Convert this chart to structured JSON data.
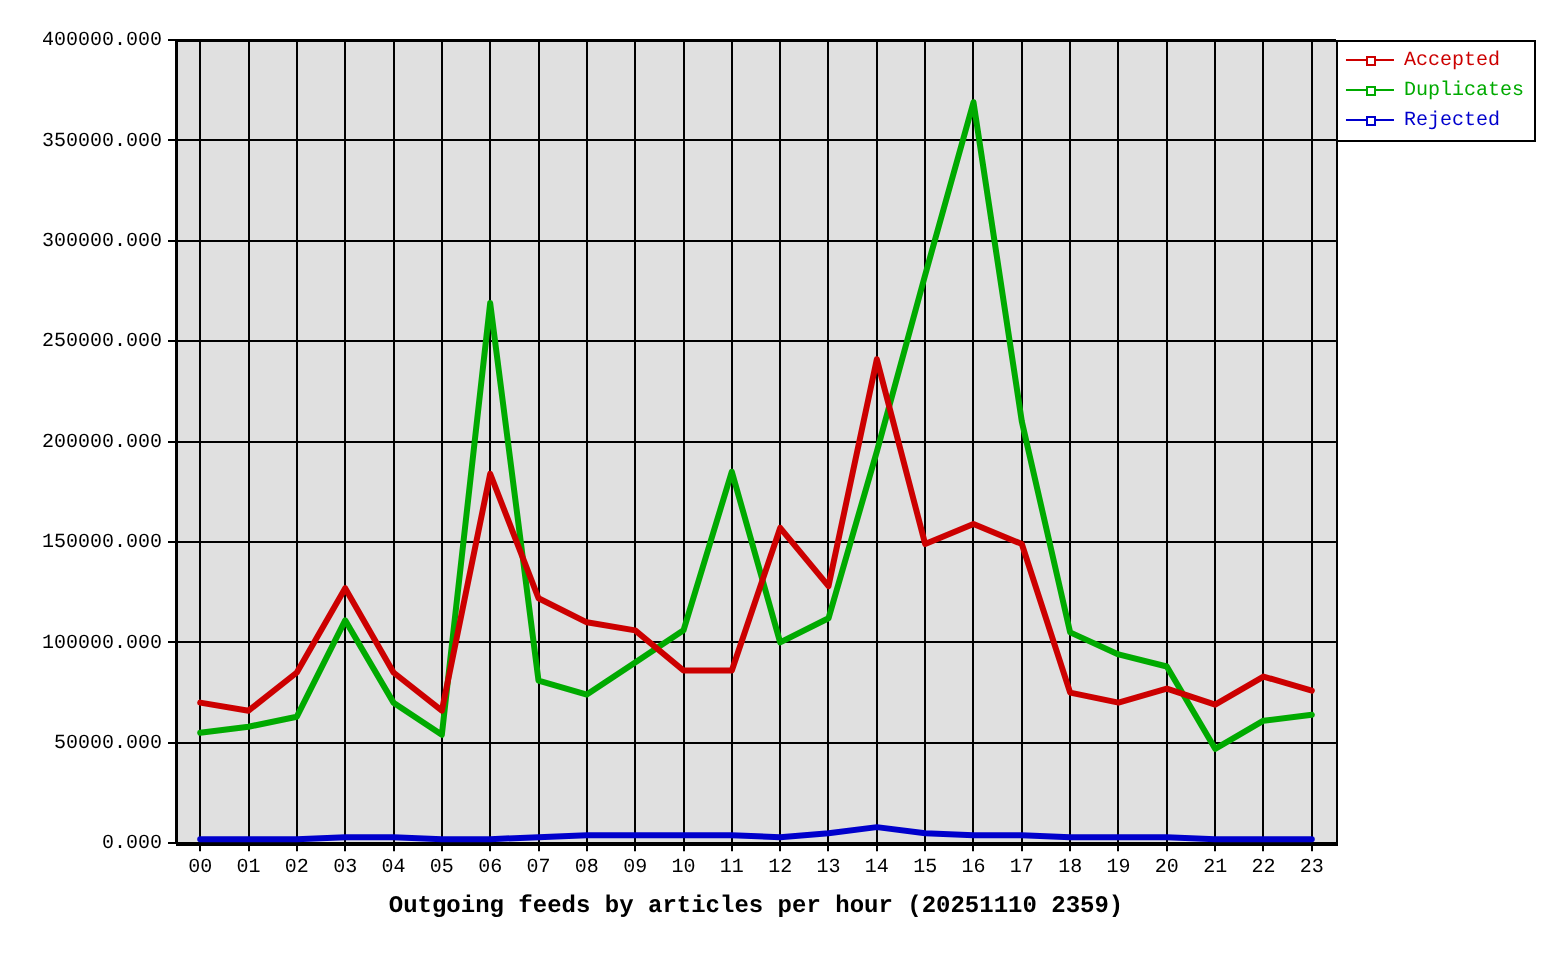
{
  "chart_data": {
    "type": "line",
    "xlabel": "Outgoing feeds by articles per hour (20251110 2359)",
    "categories": [
      "00",
      "01",
      "02",
      "03",
      "04",
      "05",
      "06",
      "07",
      "08",
      "09",
      "10",
      "11",
      "12",
      "13",
      "14",
      "15",
      "16",
      "17",
      "18",
      "19",
      "20",
      "21",
      "22",
      "23"
    ],
    "series": [
      {
        "name": "Accepted",
        "color": "#cc0000",
        "values": [
          70000,
          66000,
          85000,
          127000,
          85000,
          66000,
          184000,
          122000,
          110000,
          106000,
          86000,
          86000,
          157000,
          128000,
          241000,
          149000,
          159000,
          149000,
          75000,
          70000,
          77000,
          69000,
          83000,
          76000
        ]
      },
      {
        "name": "Duplicates",
        "color": "#00aa00",
        "values": [
          55000,
          58000,
          63000,
          111000,
          70000,
          54000,
          269000,
          81000,
          74000,
          90000,
          106000,
          185000,
          100000,
          112000,
          195000,
          283000,
          369000,
          210000,
          105000,
          94000,
          88000,
          47000,
          61000,
          64000
        ]
      },
      {
        "name": "Rejected",
        "color": "#0000cc",
        "values": [
          2000,
          2000,
          2000,
          3000,
          3000,
          2000,
          2000,
          3000,
          4000,
          4000,
          4000,
          4000,
          3000,
          5000,
          8000,
          5000,
          4000,
          4000,
          3000,
          3000,
          3000,
          2000,
          2000,
          2000
        ]
      }
    ],
    "ylim": [
      0,
      400000
    ],
    "yticks": [
      {
        "value": 0,
        "label": "0.000"
      },
      {
        "value": 50000,
        "label": "50000.000"
      },
      {
        "value": 100000,
        "label": "100000.000"
      },
      {
        "value": 150000,
        "label": "150000.000"
      },
      {
        "value": 200000,
        "label": "200000.000"
      },
      {
        "value": 250000,
        "label": "250000.000"
      },
      {
        "value": 300000,
        "label": "300000.000"
      },
      {
        "value": 350000,
        "label": "350000.000"
      },
      {
        "value": 400000,
        "label": "400000.000"
      }
    ],
    "grid": true,
    "legend": "top right"
  }
}
